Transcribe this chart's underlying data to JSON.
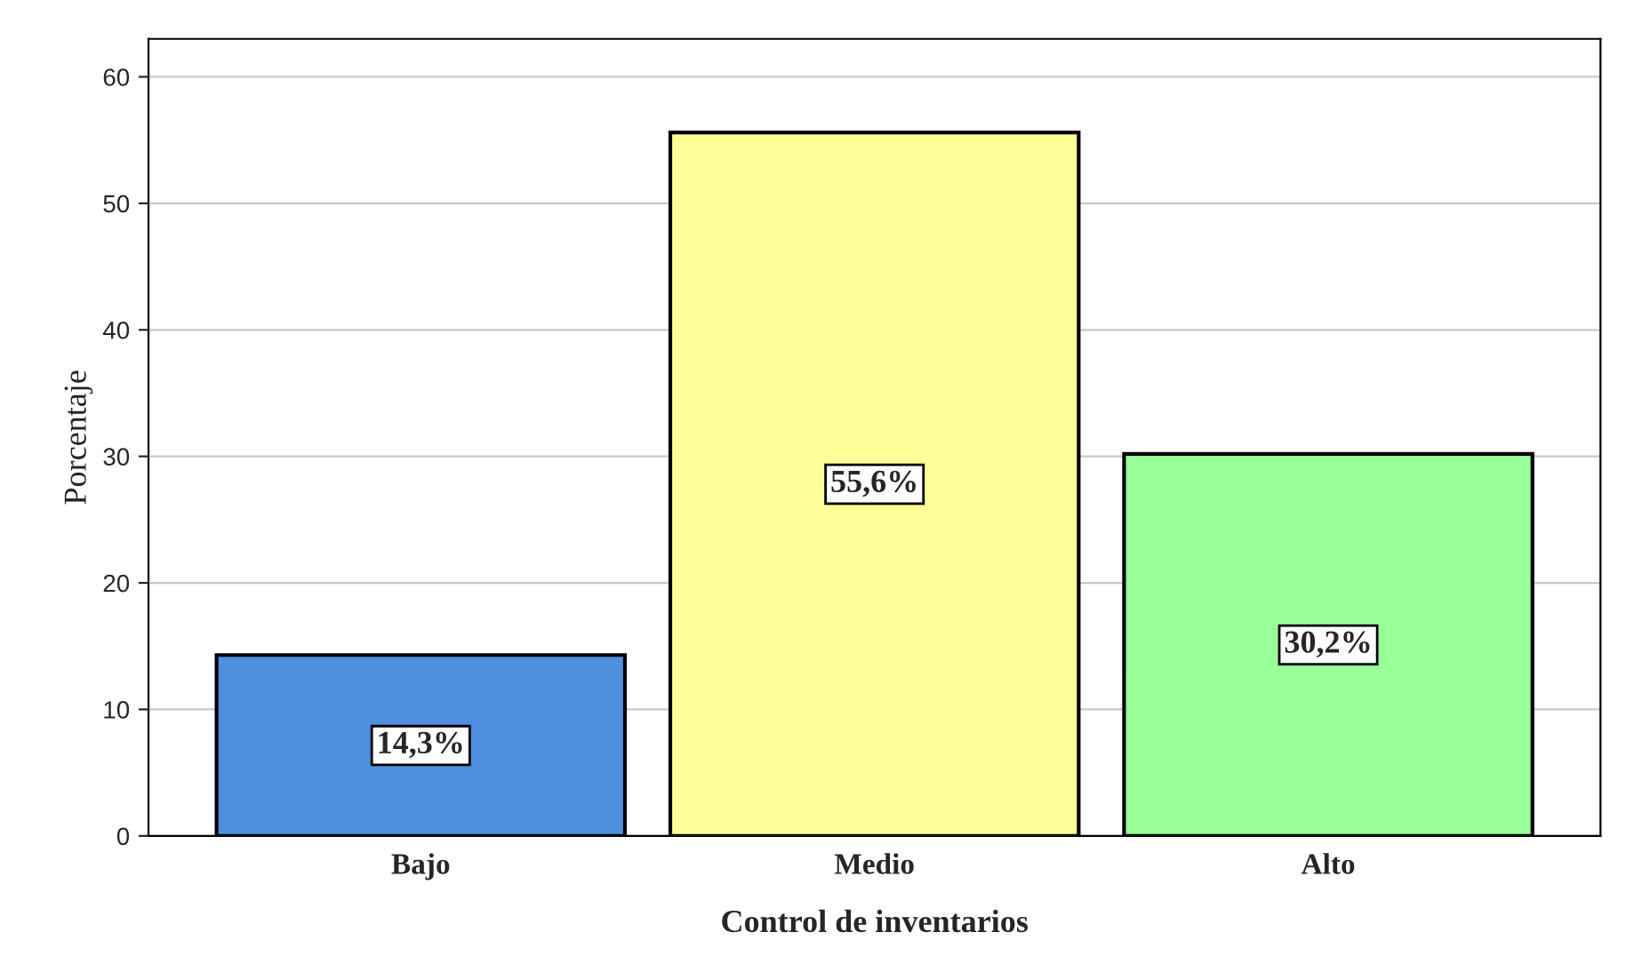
{
  "chart_data": {
    "type": "bar",
    "xlabel": "Control de inventarios",
    "ylabel": "Porcentaje",
    "categories": [
      "Bajo",
      "Medio",
      "Alto"
    ],
    "values": [
      14.3,
      55.6,
      30.2
    ],
    "value_labels": [
      "14,3%",
      "55,6%",
      "30,2%"
    ],
    "colors": [
      "#4f8fe0",
      "#ffff99",
      "#99ff99"
    ],
    "ylim": [
      0,
      63
    ],
    "yticks": [
      0,
      10,
      20,
      30,
      40,
      50,
      60
    ],
    "grid": "y"
  }
}
